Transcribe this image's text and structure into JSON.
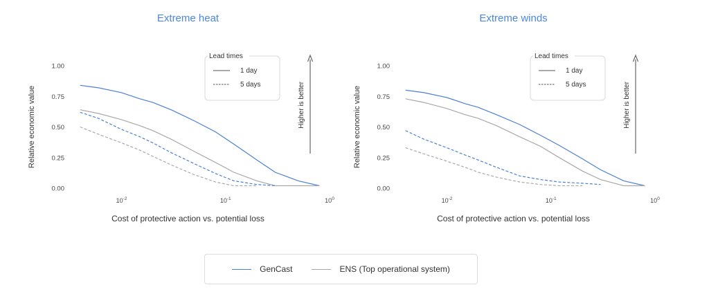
{
  "colors": {
    "gencast": "#4a7fd6",
    "ens": "#a8a8a8",
    "title": "#4a86e8",
    "axis": "#555555"
  },
  "legend": {
    "series": [
      {
        "label": "GenCast",
        "color": "#4a7fd6"
      },
      {
        "label": "ENS (Top operational system)",
        "color": "#a8a8a8"
      }
    ]
  },
  "chart_data": [
    {
      "type": "line",
      "title": "Extreme heat",
      "xlabel": "Cost of protective action vs. potential loss",
      "ylabel": "Relative economic value",
      "xscale": "log",
      "xlim": [
        0.0035,
        1.0
      ],
      "ylim": [
        0.0,
        1.0
      ],
      "yticks": [
        "0.00",
        "0.25",
        "0.50",
        "0.75",
        "1.00"
      ],
      "xticks": [
        {
          "value": 0.01,
          "base": "10",
          "exp": "-2"
        },
        {
          "value": 0.1,
          "base": "10",
          "exp": "-1"
        },
        {
          "value": 1.0,
          "base": "10",
          "exp": "0"
        }
      ],
      "lead_legend": {
        "title": "Lead times",
        "items": [
          "1 day",
          "5 days"
        ]
      },
      "arrow_label": "Higher is better",
      "series": [
        {
          "model": "GenCast",
          "lead": "1 day",
          "style": "solid",
          "points": [
            [
              0.004,
              0.84
            ],
            [
              0.006,
              0.82
            ],
            [
              0.01,
              0.78
            ],
            [
              0.015,
              0.73
            ],
            [
              0.02,
              0.7
            ],
            [
              0.03,
              0.64
            ],
            [
              0.05,
              0.55
            ],
            [
              0.08,
              0.46
            ],
            [
              0.12,
              0.36
            ],
            [
              0.2,
              0.23
            ],
            [
              0.3,
              0.13
            ],
            [
              0.5,
              0.06
            ],
            [
              0.8,
              0.02
            ]
          ]
        },
        {
          "model": "ENS (Top operational system)",
          "lead": "1 day",
          "style": "solid",
          "points": [
            [
              0.004,
              0.64
            ],
            [
              0.006,
              0.61
            ],
            [
              0.01,
              0.56
            ],
            [
              0.015,
              0.51
            ],
            [
              0.02,
              0.47
            ],
            [
              0.03,
              0.4
            ],
            [
              0.05,
              0.3
            ],
            [
              0.08,
              0.21
            ],
            [
              0.12,
              0.13
            ],
            [
              0.2,
              0.06
            ],
            [
              0.3,
              0.02
            ],
            [
              0.5,
              0.02
            ],
            [
              0.8,
              0.02
            ]
          ]
        },
        {
          "model": "GenCast",
          "lead": "5 days",
          "style": "dashed",
          "points": [
            [
              0.004,
              0.62
            ],
            [
              0.006,
              0.57
            ],
            [
              0.01,
              0.48
            ],
            [
              0.015,
              0.42
            ],
            [
              0.02,
              0.37
            ],
            [
              0.03,
              0.29
            ],
            [
              0.05,
              0.2
            ],
            [
              0.08,
              0.12
            ],
            [
              0.12,
              0.06
            ],
            [
              0.2,
              0.03
            ],
            [
              0.3,
              0.02
            ]
          ]
        },
        {
          "model": "ENS (Top operational system)",
          "lead": "5 days",
          "style": "dashed",
          "points": [
            [
              0.004,
              0.5
            ],
            [
              0.006,
              0.44
            ],
            [
              0.01,
              0.37
            ],
            [
              0.015,
              0.31
            ],
            [
              0.02,
              0.26
            ],
            [
              0.03,
              0.19
            ],
            [
              0.05,
              0.11
            ],
            [
              0.08,
              0.05
            ],
            [
              0.12,
              0.02
            ],
            [
              0.2,
              0.02
            ]
          ]
        }
      ]
    },
    {
      "type": "line",
      "title": "Extreme winds",
      "xlabel": "Cost of protective action vs. potential loss",
      "ylabel": "Relative economic value",
      "xscale": "log",
      "xlim": [
        0.0035,
        1.0
      ],
      "ylim": [
        0.0,
        1.0
      ],
      "yticks": [
        "0.00",
        "0.25",
        "0.50",
        "0.75",
        "1.00"
      ],
      "xticks": [
        {
          "value": 0.01,
          "base": "10",
          "exp": "-2"
        },
        {
          "value": 0.1,
          "base": "10",
          "exp": "-1"
        },
        {
          "value": 1.0,
          "base": "10",
          "exp": "0"
        }
      ],
      "lead_legend": {
        "title": "Lead times",
        "items": [
          "1 day",
          "5 days"
        ]
      },
      "arrow_label": "Higher is better",
      "series": [
        {
          "model": "GenCast",
          "lead": "1 day",
          "style": "solid",
          "points": [
            [
              0.004,
              0.8
            ],
            [
              0.006,
              0.78
            ],
            [
              0.01,
              0.74
            ],
            [
              0.015,
              0.69
            ],
            [
              0.02,
              0.66
            ],
            [
              0.03,
              0.6
            ],
            [
              0.05,
              0.52
            ],
            [
              0.08,
              0.43
            ],
            [
              0.12,
              0.35
            ],
            [
              0.2,
              0.24
            ],
            [
              0.3,
              0.15
            ],
            [
              0.5,
              0.06
            ],
            [
              0.8,
              0.02
            ]
          ]
        },
        {
          "model": "ENS (Top operational system)",
          "lead": "1 day",
          "style": "solid",
          "points": [
            [
              0.004,
              0.73
            ],
            [
              0.006,
              0.7
            ],
            [
              0.01,
              0.65
            ],
            [
              0.015,
              0.6
            ],
            [
              0.02,
              0.57
            ],
            [
              0.03,
              0.51
            ],
            [
              0.05,
              0.42
            ],
            [
              0.08,
              0.34
            ],
            [
              0.12,
              0.25
            ],
            [
              0.2,
              0.14
            ],
            [
              0.3,
              0.07
            ],
            [
              0.5,
              0.02
            ],
            [
              0.8,
              0.02
            ]
          ]
        },
        {
          "model": "GenCast",
          "lead": "5 days",
          "style": "dashed",
          "points": [
            [
              0.004,
              0.47
            ],
            [
              0.006,
              0.4
            ],
            [
              0.01,
              0.33
            ],
            [
              0.015,
              0.27
            ],
            [
              0.02,
              0.23
            ],
            [
              0.03,
              0.17
            ],
            [
              0.05,
              0.1
            ],
            [
              0.08,
              0.07
            ],
            [
              0.12,
              0.05
            ],
            [
              0.2,
              0.04
            ],
            [
              0.3,
              0.03
            ]
          ]
        },
        {
          "model": "ENS (Top operational system)",
          "lead": "5 days",
          "style": "dashed",
          "points": [
            [
              0.004,
              0.33
            ],
            [
              0.006,
              0.28
            ],
            [
              0.01,
              0.22
            ],
            [
              0.015,
              0.17
            ],
            [
              0.02,
              0.13
            ],
            [
              0.03,
              0.09
            ],
            [
              0.05,
              0.05
            ],
            [
              0.08,
              0.03
            ],
            [
              0.12,
              0.02
            ],
            [
              0.2,
              0.02
            ]
          ]
        }
      ]
    }
  ]
}
